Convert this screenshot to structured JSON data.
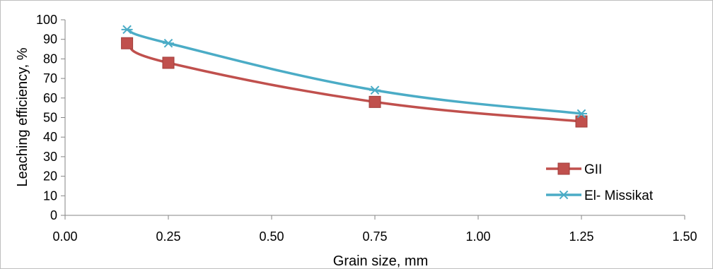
{
  "chart_data": {
    "type": "line",
    "xlabel": "Grain size, mm",
    "ylabel": "Leaching efficiency, %",
    "xlim": [
      0,
      1.5
    ],
    "ylim": [
      0,
      100
    ],
    "x_ticks": [
      "0.00",
      "0.25",
      "0.50",
      "0.75",
      "1.00",
      "1.25",
      "1.50"
    ],
    "y_ticks": [
      "0",
      "10",
      "20",
      "30",
      "40",
      "50",
      "60",
      "70",
      "80",
      "90",
      "100"
    ],
    "grid": false,
    "legend_position": "bottom-right",
    "series": [
      {
        "name": "GII",
        "color": "#c0504d",
        "marker": "square",
        "x": [
          0.15,
          0.25,
          0.75,
          1.25
        ],
        "y": [
          88,
          78,
          58,
          48
        ]
      },
      {
        "name": "El- Missikat",
        "color": "#4bacc6",
        "marker": "asterisk",
        "x": [
          0.15,
          0.25,
          0.75,
          1.25
        ],
        "y": [
          95,
          88,
          64,
          52
        ]
      }
    ]
  }
}
